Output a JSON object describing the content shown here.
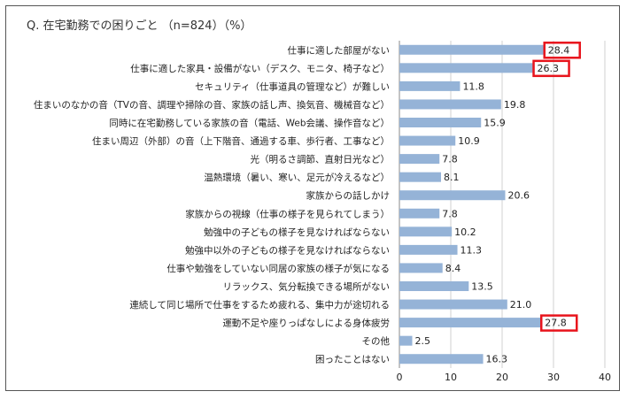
{
  "title": "Q. 在宅勤務での困りごと （n=824）（%）",
  "chart_data": {
    "type": "bar",
    "orientation": "horizontal",
    "categories": [
      "仕事に適した部屋がない",
      "仕事に適した家具・設備がない（デスク、モニタ、椅子など）",
      "セキュリティ（仕事道具の管理など）が難しい",
      "住まいのなかの音（TVの音、調理や掃除の音、家族の話し声、換気音、機械音など）",
      "同時に在宅勤務している家族の音（電話、Web会議、操作音など）",
      "住まい周辺（外部）の音（上下階音、通過する車、歩行者、工事など）",
      "光（明るさ調節、直射日光など）",
      "温熱環境（暑い、寒い、足元が冷えるなど）",
      "家族からの話しかけ",
      "家族からの視線（仕事の様子を見られてしまう）",
      "勉強中の子どもの様子を見なければならない",
      "勉強中以外の子どもの様子を見なければならない",
      "仕事や勉強をしていない同居の家族の様子が気になる",
      "リラックス、気分転換できる場所がない",
      "連続して同じ場所で仕事をするため疲れる、集中力が途切れる",
      "運動不足や座りっぱなしによる身体疲労",
      "その他",
      "困ったことはない"
    ],
    "values": [
      28.4,
      26.3,
      11.8,
      19.8,
      15.9,
      10.9,
      7.8,
      8.1,
      20.6,
      7.8,
      10.2,
      11.3,
      8.4,
      13.5,
      21.0,
      27.8,
      2.5,
      16.3
    ],
    "value_labels": [
      "28.4",
      "26.3",
      "11.8",
      "19.8",
      "15.9",
      "10.9",
      "7.8",
      "8.1",
      "20.6",
      "7.8",
      "10.2",
      "11.3",
      "8.4",
      "13.5",
      "21.0",
      "27.8",
      "2.5",
      "16.3"
    ],
    "highlighted": [
      0,
      1,
      15
    ],
    "xlim": [
      0,
      40
    ],
    "xticks": [
      "0",
      "10",
      "20",
      "30",
      "40"
    ],
    "grid": true,
    "bar_color": "#95b3d7",
    "highlight_color": "#e8141c",
    "grid_color": "#d0d0d0"
  }
}
